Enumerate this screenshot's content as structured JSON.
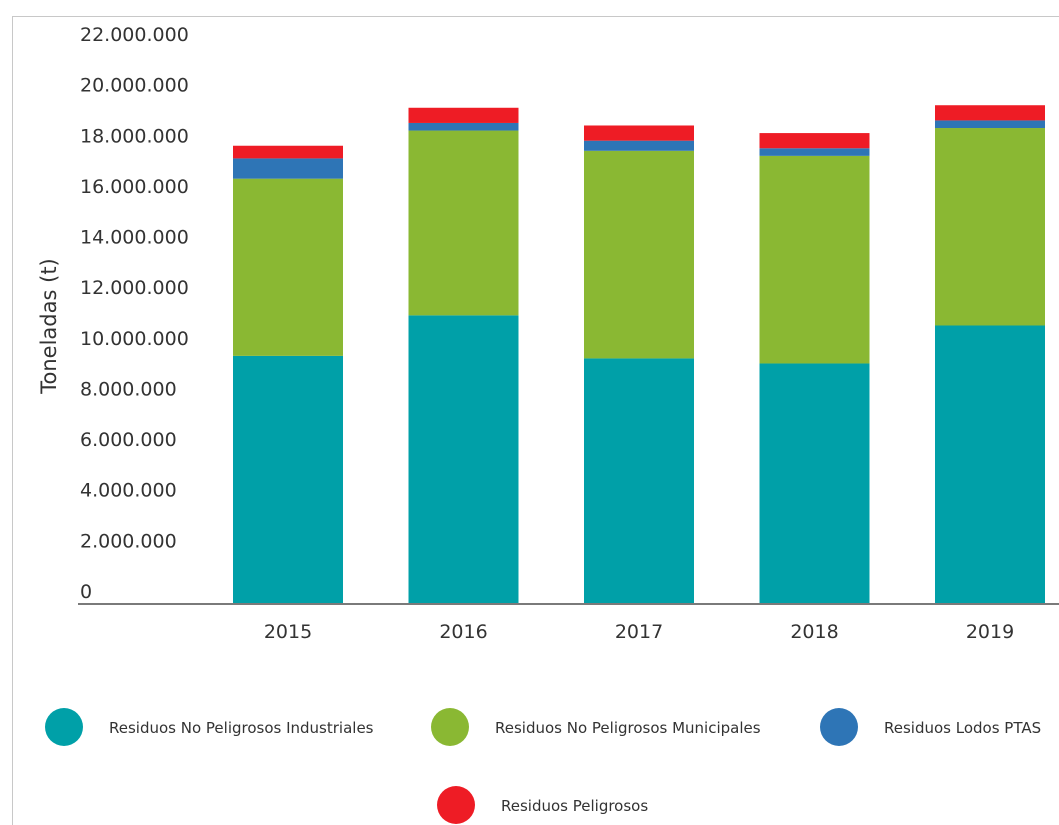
{
  "chart_data": {
    "type": "bar",
    "stacked": true,
    "title": "",
    "xlabel": "",
    "ylabel": "Toneladas (t)",
    "ylim": [
      0,
      22000000
    ],
    "y_ticks": [
      0,
      2000000,
      4000000,
      6000000,
      8000000,
      10000000,
      12000000,
      14000000,
      16000000,
      18000000,
      20000000,
      22000000
    ],
    "y_tick_labels": [
      "0",
      "2.000.000",
      "4.000.000",
      "6.000.000",
      "8.000.000",
      "10.000.000",
      "12.000.000",
      "14.000.000",
      "16.000.000",
      "18.000.000",
      "20.000.000",
      "22.000.000"
    ],
    "grid": false,
    "legend_position": "bottom",
    "categories": [
      "2015",
      "2016",
      "2017",
      "2018",
      "2019"
    ],
    "series": [
      {
        "name": "Residuos No Peligrosos Industriales",
        "color": "#00A0A8",
        "values": [
          9800000,
          11400000,
          9700000,
          9500000,
          11000000
        ]
      },
      {
        "name": "Residuos No Peligrosos Municipales",
        "color": "#8AB833",
        "values": [
          7000000,
          7300000,
          8200000,
          8200000,
          7800000
        ]
      },
      {
        "name": "Residuos Lodos PTAS",
        "color": "#2E75B6",
        "values": [
          800000,
          300000,
          400000,
          300000,
          300000
        ]
      },
      {
        "name": "Residuos Peligrosos",
        "color": "#EE1C25",
        "values": [
          500000,
          600000,
          600000,
          600000,
          600000
        ]
      }
    ]
  }
}
